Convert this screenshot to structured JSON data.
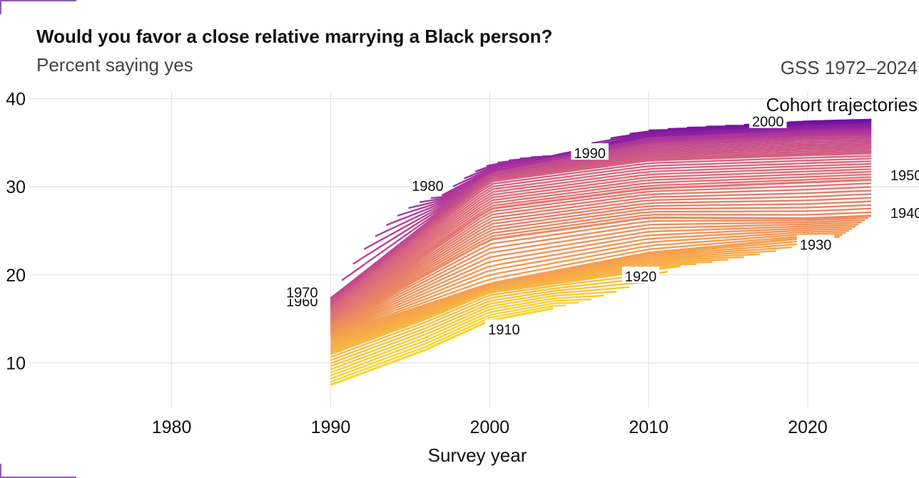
{
  "header": {
    "title": "Would you favor a close relative marrying a Black person?",
    "subtitle": "Percent saying yes",
    "source": "GSS 1972–2024"
  },
  "chart_data": {
    "type": "line",
    "title": "Would you favor a close relative marrying a Black person?",
    "subtitle": "Percent saying yes",
    "xlabel": "Survey year",
    "ylabel": "",
    "xlim": [
      1971,
      2027
    ],
    "ylim": [
      5.5,
      41.5
    ],
    "x_ticks": [
      1980,
      1990,
      2000,
      2010,
      2020
    ],
    "y_ticks": [
      10,
      20,
      30,
      40
    ],
    "grid": true,
    "legend": "none",
    "annotation": "Cohort trajectories",
    "color_scale": {
      "low_cohort": "#f9e52a",
      "mid_cohort": "#df6b7a",
      "high_cohort": "#5c07a0"
    },
    "cohort_range": [
      1905,
      2006
    ],
    "series": [
      {
        "name": "1910",
        "x": [
          1990,
          1996,
          2000,
          2004
        ],
        "y": [
          7.5,
          11.5,
          14.8,
          16.2
        ]
      },
      {
        "name": "1920",
        "x": [
          1990,
          1996,
          2000,
          2010,
          2012
        ],
        "y": [
          11.0,
          15.0,
          18.0,
          20.5,
          21.0
        ]
      },
      {
        "name": "1930",
        "x": [
          1990,
          2000,
          2010,
          2020,
          2022
        ],
        "y": [
          13.0,
          19.0,
          22.5,
          24.2,
          24.3
        ]
      },
      {
        "name": "1940",
        "x": [
          1990,
          2000,
          2010,
          2020,
          2024
        ],
        "y": [
          14.0,
          24.0,
          26.5,
          26.4,
          26.7
        ]
      },
      {
        "name": "1950",
        "x": [
          1990,
          2000,
          2010,
          2020,
          2024
        ],
        "y": [
          15.0,
          27.5,
          29.8,
          30.5,
          30.8
        ]
      },
      {
        "name": "1960",
        "x": [
          1990,
          2000,
          2010,
          2020,
          2024
        ],
        "y": [
          16.3,
          30.6,
          33.0,
          33.6,
          33.8
        ]
      },
      {
        "name": "1970",
        "x": [
          1990,
          2000,
          2010,
          2020,
          2024
        ],
        "y": [
          17.3,
          31.5,
          34.8,
          35.6,
          35.7
        ]
      },
      {
        "name": "1980",
        "x": [
          1997,
          2000,
          2010,
          2020,
          2024
        ],
        "y": [
          29.0,
          31.8,
          35.5,
          36.2,
          36.4
        ]
      },
      {
        "name": "1990",
        "x": [
          2004,
          2010,
          2020,
          2024
        ],
        "y": [
          33.5,
          35.8,
          36.8,
          37.0
        ]
      },
      {
        "name": "2000",
        "x": [
          2016,
          2020,
          2024
        ],
        "y": [
          37.0,
          37.4,
          37.6
        ]
      }
    ],
    "cohort_labels": [
      {
        "text": "1910",
        "x": 2000.9,
        "y": 13.8
      },
      {
        "text": "1920",
        "x": 2009.5,
        "y": 19.8
      },
      {
        "text": "1930",
        "x": 2020.5,
        "y": 23.4
      },
      {
        "text": "1940",
        "x": 2026.2,
        "y": 27.0
      },
      {
        "text": "1950",
        "x": 2026.2,
        "y": 31.3
      },
      {
        "text": "1960",
        "x": 1988.2,
        "y": 17.0
      },
      {
        "text": "1970",
        "x": 1988.2,
        "y": 18.0
      },
      {
        "text": "1980",
        "x": 1996.1,
        "y": 30.1
      },
      {
        "text": "1990",
        "x": 2006.3,
        "y": 33.8
      },
      {
        "text": "2000",
        "x": 2017.5,
        "y": 37.4
      }
    ]
  }
}
